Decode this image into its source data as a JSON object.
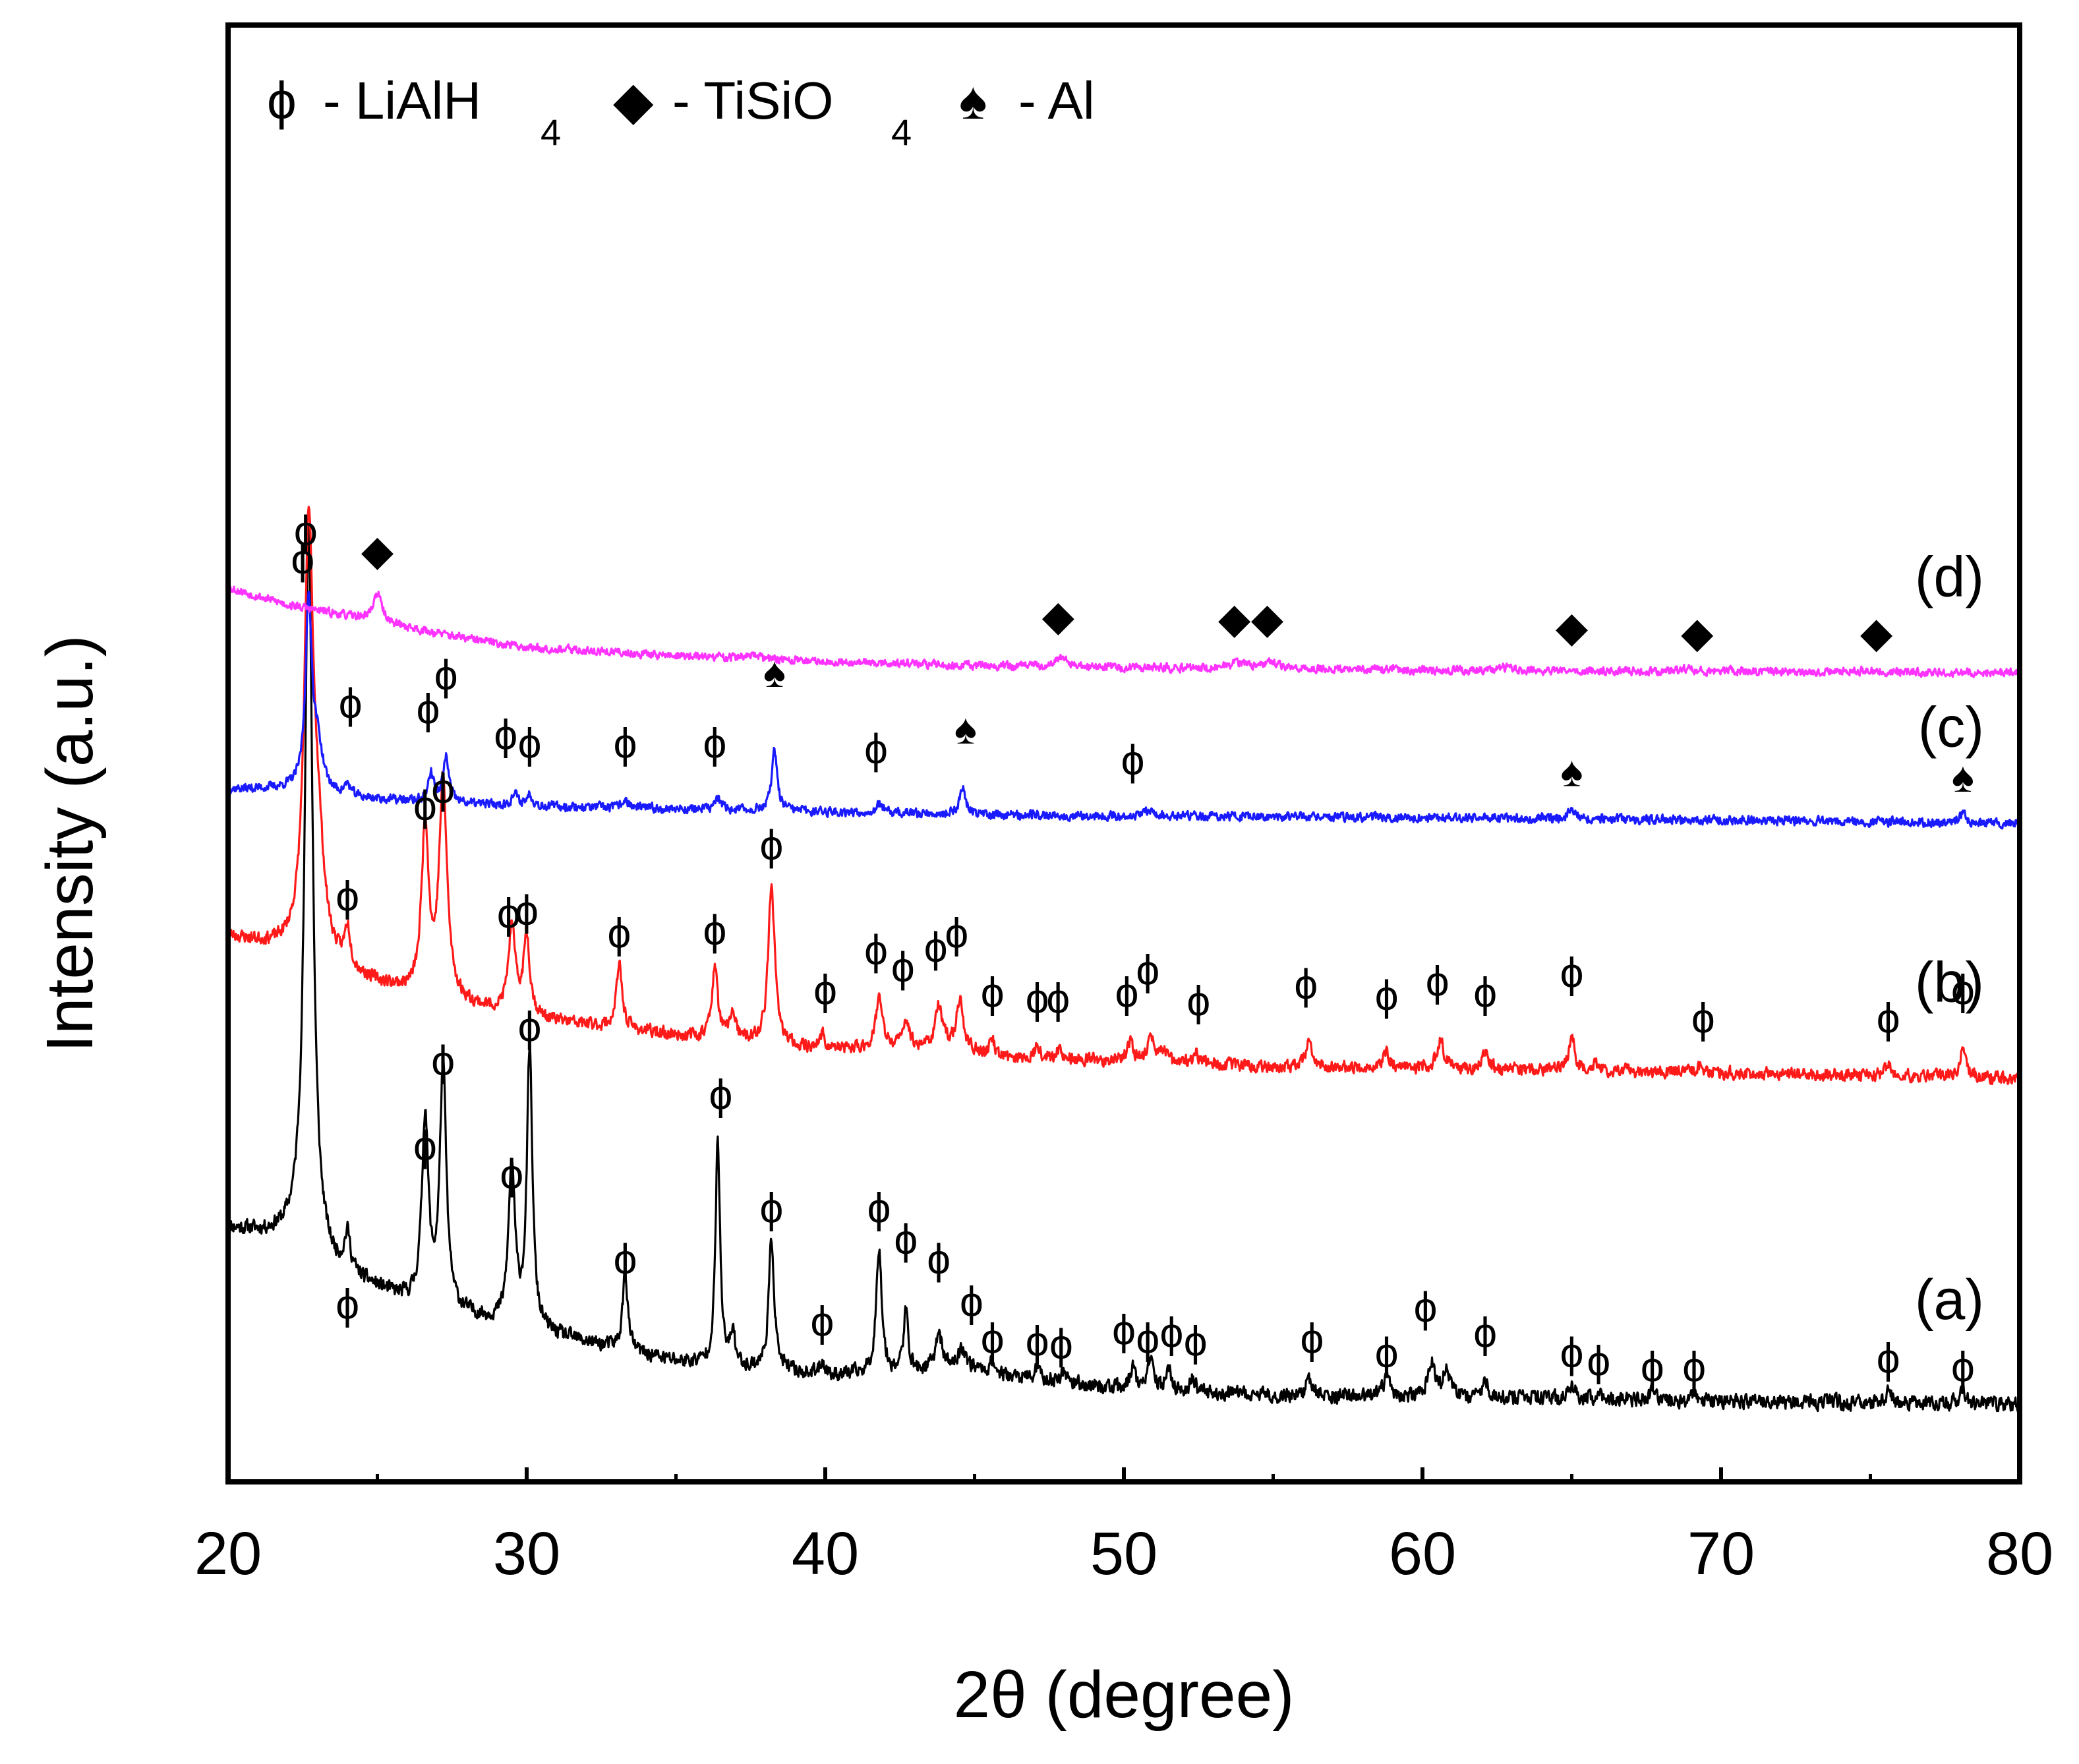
{
  "chart_data": {
    "type": "line",
    "xlabel": "2θ (degree)",
    "ylabel": "Intensity (a.u.)",
    "xlim": [
      20,
      80
    ],
    "xticks": [
      20,
      30,
      40,
      50,
      60,
      70,
      80
    ],
    "yticks": [],
    "grid": false,
    "legend": {
      "placement": "top-left",
      "entries": [
        {
          "symbol": "ϕ",
          "text": "- LiAlH",
          "sub": "4",
          "phase": "LiAlH4"
        },
        {
          "symbol": "◆",
          "text": "- TiSiO",
          "sub": "4",
          "phase": "TiSiO4"
        },
        {
          "symbol": "♠",
          "text": "- Al",
          "sub": "",
          "phase": "Al"
        }
      ]
    },
    "symbols": {
      "LiAlH4": "ϕ",
      "TiSiO4": "◆",
      "Al": "♠"
    },
    "series": [
      {
        "name": "(a)",
        "color": "#000000",
        "offset": 0.0,
        "seed": 11,
        "noise": 0.035,
        "baseline": [
          [
            20,
            0.62
          ],
          [
            22.3,
            0.58
          ],
          [
            23.5,
            0.47
          ],
          [
            26,
            0.36
          ],
          [
            30,
            0.26
          ],
          [
            35,
            0.15
          ],
          [
            40,
            0.1
          ],
          [
            43,
            0.11
          ],
          [
            44.5,
            0.14
          ],
          [
            46,
            0.1
          ],
          [
            50,
            0.05
          ],
          [
            55,
            0.03
          ],
          [
            60,
            0.025
          ],
          [
            70,
            0.01
          ],
          [
            80,
            0.0
          ]
        ],
        "peaks": [
          [
            22.7,
            2.55,
            0.16
          ],
          [
            24.0,
            0.13,
            0.12
          ],
          [
            26.6,
            0.66,
            0.13
          ],
          [
            27.2,
            0.85,
            0.13
          ],
          [
            29.5,
            0.56,
            0.13
          ],
          [
            30.1,
            0.98,
            0.11
          ],
          [
            33.3,
            0.28,
            0.1
          ],
          [
            36.4,
            0.8,
            0.09
          ],
          [
            36.9,
            0.12,
            0.09
          ],
          [
            38.2,
            0.46,
            0.11
          ],
          [
            39.9,
            0.05,
            0.1
          ],
          [
            41.8,
            0.45,
            0.11
          ],
          [
            42.7,
            0.21,
            0.1
          ],
          [
            43.8,
            0.13,
            0.12
          ],
          [
            44.6,
            0.06,
            0.12
          ],
          [
            45.6,
            0.04,
            0.1
          ],
          [
            47.1,
            0.04,
            0.1
          ],
          [
            48.0,
            0.05,
            0.1
          ],
          [
            50.3,
            0.08,
            0.12
          ],
          [
            50.9,
            0.1,
            0.12
          ],
          [
            51.5,
            0.07,
            0.12
          ],
          [
            52.3,
            0.05,
            0.1
          ],
          [
            56.2,
            0.06,
            0.12
          ],
          [
            58.8,
            0.07,
            0.12
          ],
          [
            60.3,
            0.13,
            0.13
          ],
          [
            60.8,
            0.1,
            0.13
          ],
          [
            62.1,
            0.06,
            0.12
          ],
          [
            65.0,
            0.05,
            0.12
          ],
          [
            65.9,
            0.03,
            0.1
          ],
          [
            67.7,
            0.03,
            0.1
          ],
          [
            69.1,
            0.02,
            0.1
          ],
          [
            75.6,
            0.04,
            0.12
          ],
          [
            78.1,
            0.04,
            0.12
          ]
        ],
        "markers": [
          {
            "x": 24.0,
            "y": 0.34,
            "type": "LiAlH4"
          },
          {
            "x": 26.6,
            "y": 0.9,
            "type": "LiAlH4"
          },
          {
            "x": 27.2,
            "y": 1.2,
            "type": "LiAlH4"
          },
          {
            "x": 29.5,
            "y": 0.8,
            "type": "LiAlH4"
          },
          {
            "x": 30.1,
            "y": 1.32,
            "type": "LiAlH4"
          },
          {
            "x": 33.3,
            "y": 0.5,
            "type": "LiAlH4"
          },
          {
            "x": 36.5,
            "y": 1.08,
            "type": "LiAlH4"
          },
          {
            "x": 38.2,
            "y": 0.68,
            "type": "LiAlH4"
          },
          {
            "x": 39.9,
            "y": 0.28,
            "type": "LiAlH4"
          },
          {
            "x": 41.8,
            "y": 0.68,
            "type": "LiAlH4"
          },
          {
            "x": 42.7,
            "y": 0.57,
            "type": "LiAlH4"
          },
          {
            "x": 43.8,
            "y": 0.5,
            "type": "LiAlH4"
          },
          {
            "x": 44.9,
            "y": 0.35,
            "type": "LiAlH4"
          },
          {
            "x": 45.6,
            "y": 0.22,
            "type": "LiAlH4"
          },
          {
            "x": 47.1,
            "y": 0.21,
            "type": "LiAlH4"
          },
          {
            "x": 47.9,
            "y": 0.2,
            "type": "LiAlH4"
          },
          {
            "x": 50.0,
            "y": 0.25,
            "type": "LiAlH4"
          },
          {
            "x": 50.8,
            "y": 0.22,
            "type": "LiAlH4"
          },
          {
            "x": 51.6,
            "y": 0.24,
            "type": "LiAlH4"
          },
          {
            "x": 52.4,
            "y": 0.21,
            "type": "LiAlH4"
          },
          {
            "x": 56.3,
            "y": 0.22,
            "type": "LiAlH4"
          },
          {
            "x": 58.8,
            "y": 0.17,
            "type": "LiAlH4"
          },
          {
            "x": 60.1,
            "y": 0.33,
            "type": "LiAlH4"
          },
          {
            "x": 62.1,
            "y": 0.24,
            "type": "LiAlH4"
          },
          {
            "x": 65.0,
            "y": 0.17,
            "type": "LiAlH4"
          },
          {
            "x": 65.9,
            "y": 0.14,
            "type": "LiAlH4"
          },
          {
            "x": 67.7,
            "y": 0.12,
            "type": "LiAlH4"
          },
          {
            "x": 69.1,
            "y": 0.12,
            "type": "LiAlH4"
          },
          {
            "x": 75.6,
            "y": 0.15,
            "type": "LiAlH4"
          },
          {
            "x": 78.1,
            "y": 0.12,
            "type": "LiAlH4"
          }
        ]
      },
      {
        "name": "(b)",
        "color": "#ff1a1a",
        "offset": 1.15,
        "seed": 23,
        "noise": 0.03,
        "baseline": [
          [
            20,
            0.5
          ],
          [
            21.5,
            0.46
          ],
          [
            22.3,
            0.44
          ],
          [
            24,
            0.36
          ],
          [
            26,
            0.3
          ],
          [
            30,
            0.21
          ],
          [
            35,
            0.15
          ],
          [
            40,
            0.1
          ],
          [
            44,
            0.11
          ],
          [
            46,
            0.07
          ],
          [
            50,
            0.06
          ],
          [
            55,
            0.04
          ],
          [
            60,
            0.035
          ],
          [
            70,
            0.02
          ],
          [
            80,
            0.0
          ]
        ],
        "peaks": [
          [
            22.7,
            1.45,
            0.18
          ],
          [
            23.0,
            0.35,
            0.25
          ],
          [
            24.0,
            0.14,
            0.12
          ],
          [
            26.6,
            0.6,
            0.14
          ],
          [
            27.2,
            0.76,
            0.16
          ],
          [
            29.5,
            0.3,
            0.14
          ],
          [
            30.0,
            0.28,
            0.13
          ],
          [
            33.1,
            0.22,
            0.12
          ],
          [
            36.3,
            0.25,
            0.12
          ],
          [
            36.9,
            0.1,
            0.11
          ],
          [
            38.2,
            0.56,
            0.13
          ],
          [
            39.9,
            0.05,
            0.11
          ],
          [
            41.8,
            0.18,
            0.13
          ],
          [
            42.7,
            0.1,
            0.12
          ],
          [
            43.8,
            0.14,
            0.14
          ],
          [
            44.5,
            0.17,
            0.14
          ],
          [
            45.6,
            0.05,
            0.11
          ],
          [
            47.1,
            0.05,
            0.11
          ],
          [
            47.8,
            0.04,
            0.11
          ],
          [
            50.2,
            0.07,
            0.12
          ],
          [
            50.9,
            0.09,
            0.13
          ],
          [
            51.3,
            0.04,
            0.12
          ],
          [
            52.4,
            0.04,
            0.12
          ],
          [
            56.2,
            0.08,
            0.13
          ],
          [
            58.8,
            0.05,
            0.12
          ],
          [
            60.6,
            0.1,
            0.14
          ],
          [
            62.1,
            0.06,
            0.12
          ],
          [
            65.0,
            0.12,
            0.12
          ],
          [
            65.8,
            0.02,
            0.11
          ],
          [
            69.3,
            0.02,
            0.11
          ],
          [
            75.6,
            0.04,
            0.12
          ],
          [
            78.1,
            0.11,
            0.12
          ]
        ],
        "markers": [
          {
            "x": 22.6,
            "y": 1.92,
            "type": "LiAlH4"
          },
          {
            "x": 24.0,
            "y": 0.63,
            "type": "LiAlH4"
          },
          {
            "x": 26.6,
            "y": 0.95,
            "type": "LiAlH4"
          },
          {
            "x": 27.2,
            "y": 1.01,
            "type": "LiAlH4"
          },
          {
            "x": 29.4,
            "y": 0.57,
            "type": "LiAlH4"
          },
          {
            "x": 30.0,
            "y": 0.58,
            "type": "LiAlH4"
          },
          {
            "x": 33.1,
            "y": 0.5,
            "type": "LiAlH4"
          },
          {
            "x": 36.3,
            "y": 0.51,
            "type": "LiAlH4"
          },
          {
            "x": 38.2,
            "y": 0.81,
            "type": "LiAlH4"
          },
          {
            "x": 40.0,
            "y": 0.3,
            "type": "LiAlH4"
          },
          {
            "x": 41.7,
            "y": 0.44,
            "type": "LiAlH4"
          },
          {
            "x": 42.6,
            "y": 0.38,
            "type": "LiAlH4"
          },
          {
            "x": 43.7,
            "y": 0.45,
            "type": "LiAlH4"
          },
          {
            "x": 44.4,
            "y": 0.5,
            "type": "LiAlH4"
          },
          {
            "x": 45.6,
            "y": 0.29,
            "type": "LiAlH4"
          },
          {
            "x": 47.1,
            "y": 0.27,
            "type": "LiAlH4"
          },
          {
            "x": 47.8,
            "y": 0.27,
            "type": "LiAlH4"
          },
          {
            "x": 50.1,
            "y": 0.29,
            "type": "LiAlH4"
          },
          {
            "x": 50.8,
            "y": 0.37,
            "type": "LiAlH4"
          },
          {
            "x": 52.5,
            "y": 0.26,
            "type": "LiAlH4"
          },
          {
            "x": 56.1,
            "y": 0.32,
            "type": "LiAlH4"
          },
          {
            "x": 58.8,
            "y": 0.28,
            "type": "LiAlH4"
          },
          {
            "x": 60.5,
            "y": 0.33,
            "type": "LiAlH4"
          },
          {
            "x": 62.1,
            "y": 0.29,
            "type": "LiAlH4"
          },
          {
            "x": 65.0,
            "y": 0.36,
            "type": "LiAlH4"
          },
          {
            "x": 69.4,
            "y": 0.2,
            "type": "LiAlH4"
          },
          {
            "x": 75.6,
            "y": 0.2,
            "type": "LiAlH4"
          },
          {
            "x": 78.1,
            "y": 0.3,
            "type": "LiAlH4"
          }
        ]
      },
      {
        "name": "(c)",
        "color": "#1a1aff",
        "offset": 2.05,
        "seed": 37,
        "noise": 0.022,
        "baseline": [
          [
            20,
            0.12
          ],
          [
            22,
            0.12
          ],
          [
            24,
            0.09
          ],
          [
            27,
            0.07
          ],
          [
            30,
            0.06
          ],
          [
            35,
            0.05
          ],
          [
            40,
            0.04
          ],
          [
            45,
            0.03
          ],
          [
            50,
            0.025
          ],
          [
            60,
            0.02
          ],
          [
            70,
            0.01
          ],
          [
            80,
            0.0
          ]
        ],
        "peaks": [
          [
            22.7,
            0.66,
            0.13
          ],
          [
            23.0,
            0.15,
            0.2
          ],
          [
            24.0,
            0.04,
            0.12
          ],
          [
            26.8,
            0.1,
            0.12
          ],
          [
            27.3,
            0.16,
            0.12
          ],
          [
            29.6,
            0.04,
            0.12
          ],
          [
            30.1,
            0.04,
            0.12
          ],
          [
            33.3,
            0.03,
            0.12
          ],
          [
            36.4,
            0.04,
            0.12
          ],
          [
            38.3,
            0.21,
            0.11
          ],
          [
            41.8,
            0.03,
            0.12
          ],
          [
            44.6,
            0.1,
            0.11
          ],
          [
            50.8,
            0.02,
            0.15
          ],
          [
            65.0,
            0.04,
            0.12
          ],
          [
            78.1,
            0.03,
            0.12
          ]
        ],
        "markers": [
          {
            "x": 22.5,
            "y": 0.92,
            "type": "LiAlH4"
          },
          {
            "x": 24.1,
            "y": 0.41,
            "type": "LiAlH4"
          },
          {
            "x": 26.7,
            "y": 0.39,
            "type": "LiAlH4"
          },
          {
            "x": 27.3,
            "y": 0.51,
            "type": "LiAlH4"
          },
          {
            "x": 29.3,
            "y": 0.3,
            "type": "LiAlH4"
          },
          {
            "x": 30.1,
            "y": 0.27,
            "type": "LiAlH4"
          },
          {
            "x": 33.3,
            "y": 0.27,
            "type": "LiAlH4"
          },
          {
            "x": 36.3,
            "y": 0.27,
            "type": "LiAlH4"
          },
          {
            "x": 38.3,
            "y": 0.52,
            "type": "Al"
          },
          {
            "x": 41.7,
            "y": 0.25,
            "type": "LiAlH4"
          },
          {
            "x": 44.7,
            "y": 0.32,
            "type": "Al"
          },
          {
            "x": 50.3,
            "y": 0.21,
            "type": "LiAlH4"
          },
          {
            "x": 65.0,
            "y": 0.17,
            "type": "Al"
          },
          {
            "x": 78.1,
            "y": 0.15,
            "type": "Al"
          }
        ]
      },
      {
        "name": "(d)",
        "color": "#ff33ff",
        "offset": 2.58,
        "seed": 53,
        "noise": 0.02,
        "baseline": [
          [
            20,
            0.3
          ],
          [
            22,
            0.24
          ],
          [
            24,
            0.2
          ],
          [
            26,
            0.16
          ],
          [
            28,
            0.12
          ],
          [
            30,
            0.09
          ],
          [
            35,
            0.06
          ],
          [
            40,
            0.04
          ],
          [
            45,
            0.025
          ],
          [
            50,
            0.018
          ],
          [
            60,
            0.01
          ],
          [
            70,
            0.005
          ],
          [
            80,
            0.0
          ]
        ],
        "peaks": [
          [
            25.0,
            0.1,
            0.18
          ],
          [
            37.5,
            0.01,
            0.4
          ],
          [
            47.9,
            0.03,
            0.25
          ],
          [
            53.8,
            0.02,
            0.3
          ],
          [
            54.9,
            0.025,
            0.3
          ],
          [
            62.7,
            0.01,
            0.3
          ],
          [
            68.8,
            0.008,
            0.3
          ],
          [
            75.0,
            0.006,
            0.3
          ]
        ],
        "markers": [
          {
            "x": 25.0,
            "y": 0.42,
            "type": "TiSiO4"
          },
          {
            "x": 47.8,
            "y": 0.19,
            "type": "TiSiO4"
          },
          {
            "x": 53.7,
            "y": 0.18,
            "type": "TiSiO4"
          },
          {
            "x": 54.8,
            "y": 0.18,
            "type": "TiSiO4"
          },
          {
            "x": 65.0,
            "y": 0.15,
            "type": "TiSiO4"
          },
          {
            "x": 69.2,
            "y": 0.13,
            "type": "TiSiO4"
          },
          {
            "x": 75.2,
            "y": 0.13,
            "type": "TiSiO4"
          }
        ]
      }
    ]
  }
}
